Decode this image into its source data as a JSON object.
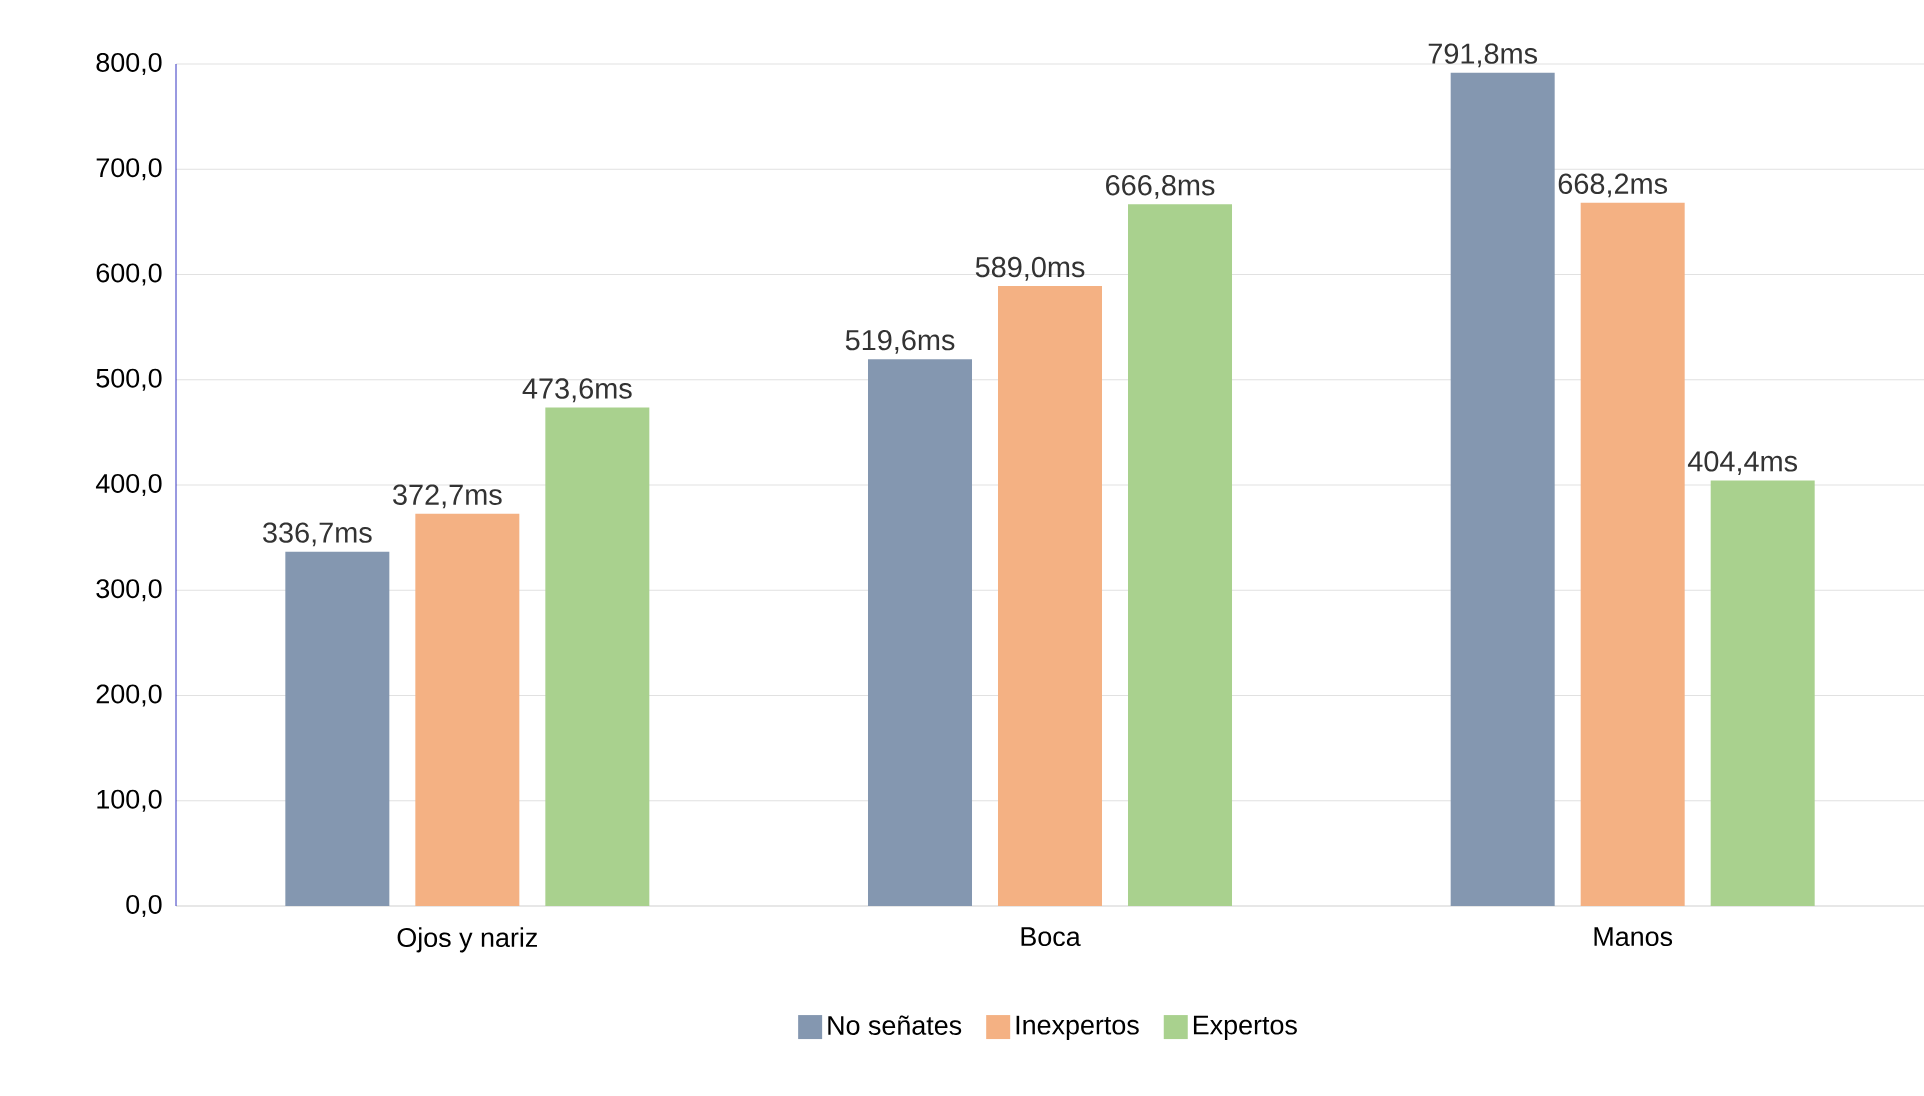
{
  "chart_data": {
    "type": "bar",
    "categories": [
      "Ojos y nariz",
      "Boca",
      "Manos"
    ],
    "series": [
      {
        "name": "No señates",
        "color": "#8497b0",
        "values": [
          336.7,
          519.6,
          791.8
        ],
        "value_labels": [
          "336,7ms",
          "519,6ms",
          "791,8ms"
        ]
      },
      {
        "name": "Inexpertos",
        "color": "#f4b183",
        "values": [
          372.7,
          589.0,
          668.2
        ],
        "value_labels": [
          "372,7ms",
          "589,0ms",
          "668,2ms"
        ]
      },
      {
        "name": "Expertos",
        "color": "#a9d18e",
        "values": [
          473.6,
          666.8,
          404.4
        ],
        "value_labels": [
          "473,6ms",
          "666,8ms",
          "404,4ms"
        ]
      }
    ],
    "ylim": [
      0,
      800
    ],
    "yticks": [
      {
        "value": 0,
        "label": "0,0"
      },
      {
        "value": 100,
        "label": "100,0"
      },
      {
        "value": 200,
        "label": "200,0"
      },
      {
        "value": 300,
        "label": "300,0"
      },
      {
        "value": 400,
        "label": "400,0"
      },
      {
        "value": 500,
        "label": "500,0"
      },
      {
        "value": 600,
        "label": "600,0"
      },
      {
        "value": 700,
        "label": "700,0"
      },
      {
        "value": 800,
        "label": "800,0"
      }
    ],
    "grid": "y",
    "legend": "bottom"
  }
}
